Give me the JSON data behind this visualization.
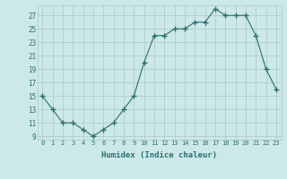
{
  "x": [
    0,
    1,
    2,
    3,
    4,
    5,
    6,
    7,
    8,
    9,
    10,
    11,
    12,
    13,
    14,
    15,
    16,
    17,
    18,
    19,
    20,
    21,
    22,
    23
  ],
  "y": [
    15,
    13,
    11,
    11,
    10,
    9,
    10,
    11,
    13,
    15,
    20,
    24,
    24,
    25,
    25,
    26,
    26,
    28,
    27,
    27,
    27,
    24,
    19,
    16
  ],
  "line_color": "#2d6e6e",
  "marker": "+",
  "bg_color": "#cce8e8",
  "grid_color": "#aac8c8",
  "xlabel": "Humidex (Indice chaleur)",
  "yticks": [
    9,
    11,
    13,
    15,
    17,
    19,
    21,
    23,
    25,
    27
  ],
  "xlim": [
    -0.5,
    23.5
  ],
  "ylim": [
    8.5,
    28.5
  ],
  "tick_color": "#2d6e6e",
  "label_color": "#2d6e6e",
  "xlabel_fontsize": 6.5,
  "ytick_fontsize": 5.5,
  "xtick_fontsize": 5.0
}
